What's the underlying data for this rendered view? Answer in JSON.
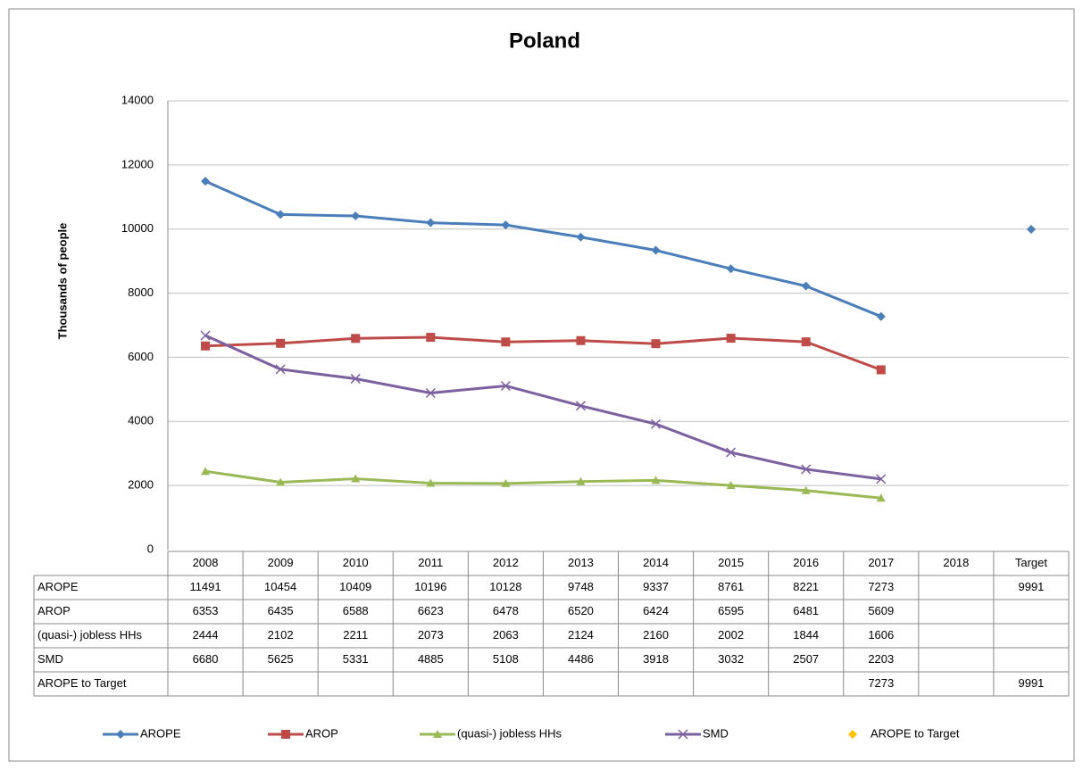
{
  "chart_data": {
    "type": "line",
    "title": "Poland",
    "y_label": "Thousands  of people",
    "categories": [
      "2008",
      "2009",
      "2010",
      "2011",
      "2012",
      "2013",
      "2014",
      "2015",
      "2016",
      "2017",
      "2018",
      "Target"
    ],
    "ylim": [
      0,
      14000
    ],
    "yticks": [
      0,
      2000,
      4000,
      6000,
      8000,
      10000,
      12000,
      14000
    ],
    "grid": true,
    "legend": "bottom",
    "data_table": true,
    "series": [
      {
        "name": "AROPE",
        "color": "#4a7ebb",
        "marker": "diamond",
        "show_line": true,
        "values": [
          11491,
          10454,
          10409,
          10196,
          10128,
          9748,
          9337,
          8761,
          8221,
          7273,
          null,
          9991
        ]
      },
      {
        "name": "AROP",
        "color": "#be4b48",
        "marker": "square",
        "show_line": true,
        "values": [
          6353,
          6435,
          6588,
          6623,
          6478,
          6520,
          6424,
          6595,
          6481,
          5609,
          null,
          null
        ]
      },
      {
        "name": "(quasi-) jobless HHs",
        "color": "#98b954",
        "marker": "triangle",
        "show_line": true,
        "values": [
          2444,
          2102,
          2211,
          2073,
          2063,
          2124,
          2160,
          2002,
          1844,
          1606,
          null,
          null
        ]
      },
      {
        "name": "SMD",
        "color": "#7d60a0",
        "marker": "x",
        "show_line": true,
        "values": [
          6680,
          5625,
          5331,
          4885,
          5108,
          4486,
          3918,
          3032,
          2507,
          2203,
          null,
          null
        ]
      },
      {
        "name": "AROPE to Target",
        "color": "#ffc000",
        "marker": "diamond",
        "show_line": false,
        "values": [
          null,
          null,
          null,
          null,
          null,
          null,
          null,
          null,
          null,
          7273,
          null,
          9991
        ]
      }
    ]
  }
}
